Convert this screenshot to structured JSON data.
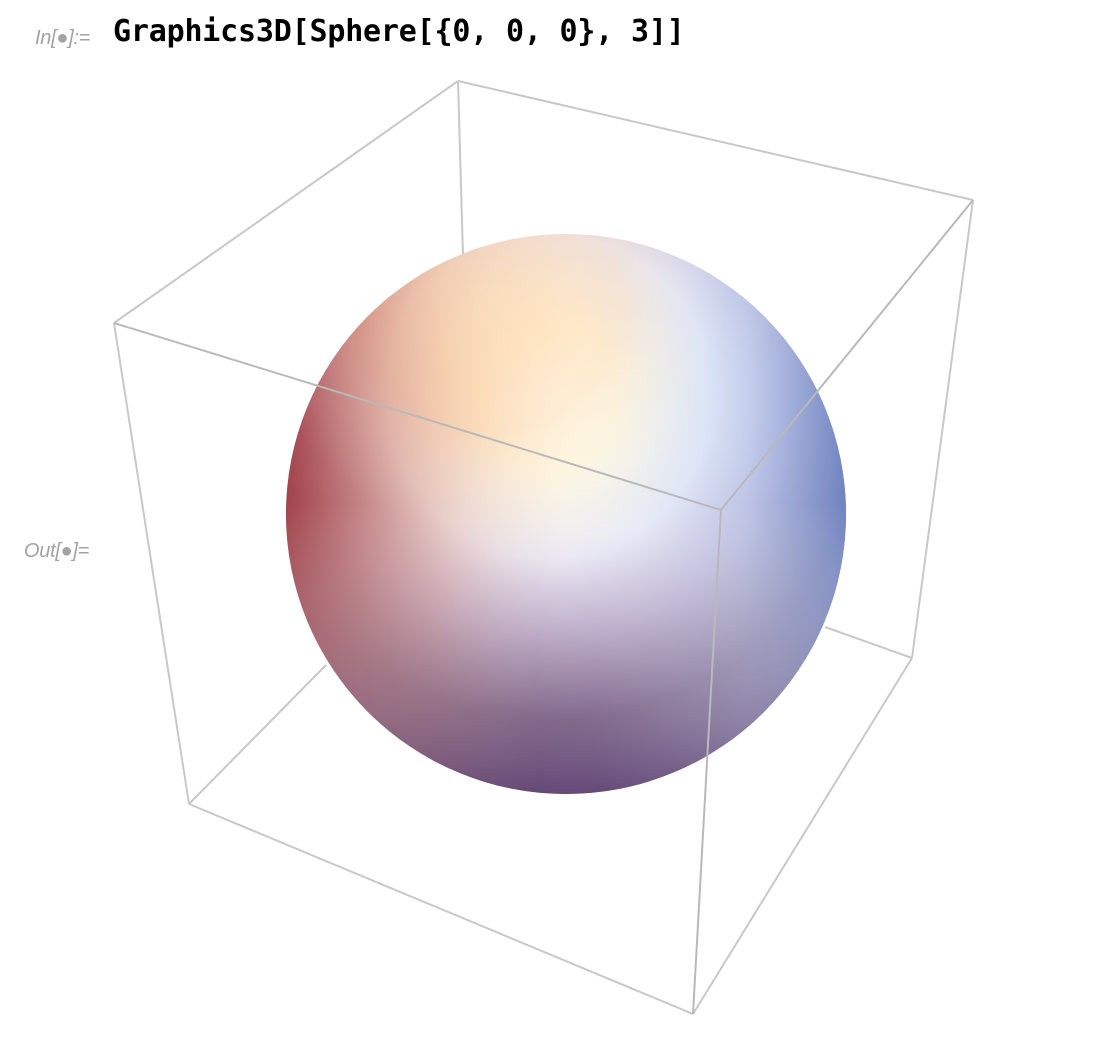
{
  "notebook": {
    "input_cell": {
      "label": "In[●]:=",
      "code": "Graphics3D[Sphere[{0, 0, 0}, 3]]"
    },
    "output_cell": {
      "label": "Out[●]="
    }
  },
  "graphics": {
    "box_edge_color": "#c8c8c8",
    "sphere_colors": {
      "highlight": "#fdf8d8",
      "warm": "#f2ad78",
      "red": "#a64248",
      "purple": "#6f4a84",
      "blue": "#b9d0f2"
    }
  }
}
